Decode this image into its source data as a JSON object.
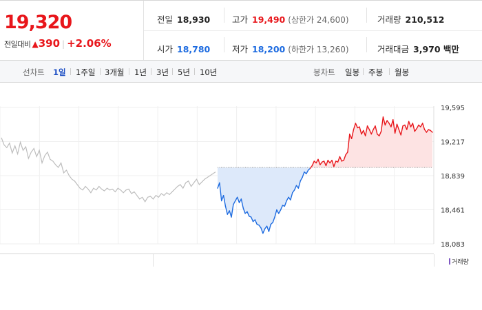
{
  "quote": {
    "price": "19,320",
    "change_label": "전일대비",
    "change_arrow": "▲",
    "change_amount": "390",
    "change_pct": "+2.06%",
    "prev_close_label": "전일",
    "prev_close": "18,930",
    "high_label": "고가",
    "high": "19,490",
    "upper_limit_label": "(상한가 24,600)",
    "volume_label": "거래량",
    "volume": "210,512",
    "open_label": "시가",
    "open": "18,780",
    "low_label": "저가",
    "low": "18,200",
    "lower_limit_label": "(하한가 13,260)",
    "value_label": "거래대금",
    "value": "3,970 백만"
  },
  "toolbar": {
    "line_chart_label": "선차트",
    "periods": [
      "1일",
      "1주일",
      "3개월",
      "1년",
      "3년",
      "5년",
      "10년"
    ],
    "active_period": "1일",
    "candle_chart_label": "봉차트",
    "candle_periods": [
      "일봉",
      "주봉",
      "월봉"
    ]
  },
  "legend": {
    "volume": "거래량"
  },
  "colors": {
    "up": "#e8161b",
    "down": "#1d6be0",
    "prev": "#bdbdbd",
    "up_fill": "#fde3e3",
    "down_fill": "#dde9fa"
  },
  "chart_data": {
    "type": "line",
    "title": "",
    "xlabel": "",
    "ylabel": "",
    "y_ticks": [
      18083,
      18461,
      18839,
      19217,
      19595
    ],
    "y_tick_labels": [
      "18,083",
      "18,461",
      "18,839",
      "19,217",
      "19,595"
    ],
    "ylim": [
      18083,
      19595
    ],
    "baseline": 18930,
    "grid": true,
    "series": [
      {
        "values": [
          19260,
          19180,
          19150,
          19200,
          19090,
          19170,
          19080,
          19210,
          19120,
          19160,
          19030,
          19100,
          19140,
          19050,
          19120,
          18980,
          19060,
          19100,
          19020,
          19000,
          18960,
          18930,
          18980,
          18870,
          18900,
          18840,
          18800,
          18780,
          18740,
          18700,
          18680,
          18720,
          18690,
          18650,
          18700,
          18680,
          18720,
          18690,
          18670,
          18700,
          18680,
          18690,
          18660,
          18700,
          18680,
          18650,
          18680,
          18690,
          18640,
          18660,
          18620,
          18580,
          18600,
          18550,
          18600,
          18610,
          18580,
          18620,
          18600,
          18640,
          18620,
          18650,
          18630,
          18660,
          18690,
          18720,
          18740,
          18700,
          18760,
          18780,
          18720,
          18760,
          18800,
          18740,
          18770,
          18800,
          18820,
          18840,
          18860,
          18880
        ]
      },
      {
        "values": [
          18700,
          18760,
          18560,
          18620,
          18500,
          18410,
          18450,
          18380,
          18520,
          18560,
          18600,
          18540,
          18580,
          18480,
          18420,
          18440,
          18390,
          18380,
          18330,
          18350,
          18300,
          18290,
          18260,
          18200,
          18250,
          18280,
          18220,
          18300,
          18320,
          18380,
          18460,
          18420,
          18460,
          18510,
          18500,
          18560,
          18600,
          18570,
          18650,
          18680,
          18730,
          18700,
          18780,
          18820,
          18880,
          18860,
          18900,
          18920,
          18950,
          19000,
          18980,
          19020,
          18960,
          18990,
          19000,
          18950,
          19010,
          18980,
          19010,
          18940,
          19000,
          18990,
          19050,
          19000,
          19010,
          19070,
          19100,
          19300,
          19250,
          19350,
          19420,
          19370,
          19380,
          19300,
          19340,
          19280,
          19390,
          19350,
          19300,
          19350,
          19390,
          19300,
          19280,
          19330,
          19490,
          19400,
          19450,
          19420,
          19380,
          19460,
          19310,
          19410,
          19350,
          19290,
          19390,
          19400,
          19350,
          19440,
          19380,
          19420,
          19330,
          19360,
          19400,
          19380,
          19420,
          19350,
          19320,
          19350,
          19340,
          19320
        ]
      }
    ]
  }
}
